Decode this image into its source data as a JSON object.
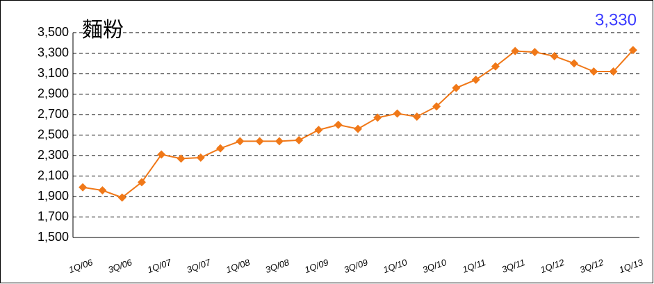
{
  "chart_data": {
    "type": "line",
    "title": "麵粉",
    "annotation": "3,330",
    "categories": [
      "1Q/06",
      null,
      "3Q/06",
      null,
      "1Q/07",
      null,
      "3Q/07",
      null,
      "1Q/08",
      null,
      "3Q/08",
      null,
      "1Q/09",
      null,
      "3Q/09",
      null,
      "1Q/10",
      null,
      "3Q/10",
      null,
      "1Q/11",
      null,
      "3Q/11",
      null,
      "1Q/12",
      null,
      "3Q/12",
      null,
      "1Q/13"
    ],
    "values": [
      1990,
      1960,
      1890,
      2040,
      2310,
      2270,
      2280,
      2370,
      2440,
      2440,
      2440,
      2450,
      2550,
      2600,
      2560,
      2670,
      2710,
      2680,
      2780,
      2960,
      3040,
      3170,
      3320,
      3310,
      3270,
      3200,
      3120,
      3120,
      3330
    ],
    "color": "#f07818",
    "ylim": [
      1500,
      3500
    ],
    "yticks": [
      {
        "value": 1500,
        "label": "1,500"
      },
      {
        "value": 1700,
        "label": "1,700"
      },
      {
        "value": 1900,
        "label": "1,900"
      },
      {
        "value": 2100,
        "label": "2,100"
      },
      {
        "value": 2300,
        "label": "2,300"
      },
      {
        "value": 2500,
        "label": "2,500"
      },
      {
        "value": 2700,
        "label": "2,700"
      },
      {
        "value": 2900,
        "label": "2,900"
      },
      {
        "value": 3100,
        "label": "3,100"
      },
      {
        "value": 3300,
        "label": "3,300"
      },
      {
        "value": 3500,
        "label": "3,500"
      }
    ],
    "grid": true
  }
}
